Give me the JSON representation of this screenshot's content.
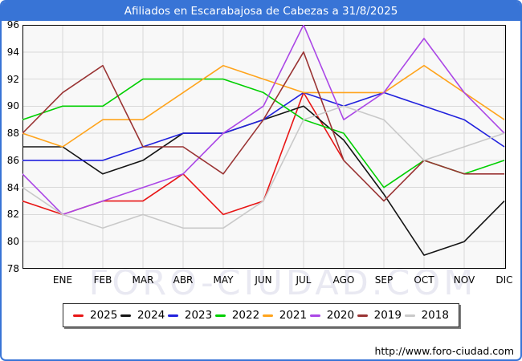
{
  "frame": {
    "title": "Afiliados en Escarabajosa de Cabezas a 31/8/2025",
    "watermark": "FORO-CIUDAD.COM",
    "url": "http://www.foro-ciudad.com"
  },
  "colors": {
    "titlebar": "#3874d6",
    "plot_background": "#f8f8f8",
    "gridline": "#d9d9d9",
    "plot_border": "#000000",
    "watermark_text": "#e9e9f2"
  },
  "chart_data": {
    "type": "line",
    "title": "Afiliados en Escarabajosa de Cabezas a 31/8/2025",
    "xlabel": "",
    "ylabel": "",
    "ylim": [
      78,
      96
    ],
    "y_ticks": [
      96,
      94,
      92,
      90,
      88,
      86,
      84,
      82,
      80,
      78
    ],
    "x_labels": [
      "",
      "ENE",
      "FEB",
      "MAR",
      "ABR",
      "MAY",
      "JUN",
      "JUL",
      "AGO",
      "SEP",
      "OCT",
      "NOV",
      "DIC"
    ],
    "grid": true,
    "legend_position": "bottom",
    "note_first_point": "first value of each series is drawn at the left plot edge before ENE",
    "series": [
      {
        "name": "2025",
        "color": "#e81515",
        "values": [
          83,
          82,
          83,
          83,
          85,
          82,
          83,
          91,
          86
        ]
      },
      {
        "name": "2024",
        "color": "#141414",
        "values": [
          87,
          87,
          85,
          86,
          88,
          88,
          89,
          90,
          87.5,
          83.5,
          79,
          80,
          83
        ]
      },
      {
        "name": "2023",
        "color": "#2121dd",
        "values": [
          86,
          86,
          86,
          87,
          88,
          88,
          89,
          91,
          90,
          91,
          90,
          89,
          87
        ]
      },
      {
        "name": "2022",
        "color": "#00cf00",
        "values": [
          89,
          90,
          90,
          92,
          92,
          92,
          91,
          89,
          88,
          84,
          86,
          85,
          86
        ]
      },
      {
        "name": "2021",
        "color": "#ffa41c",
        "values": [
          88,
          87,
          89,
          89,
          91,
          93,
          92,
          91,
          91,
          91,
          93,
          91,
          89
        ]
      },
      {
        "name": "2020",
        "color": "#ab47e6",
        "values": [
          85,
          82,
          83,
          84,
          85,
          88,
          90,
          96,
          89,
          91,
          95,
          91,
          88
        ]
      },
      {
        "name": "2019",
        "color": "#9a3434",
        "values": [
          88,
          91,
          93,
          87,
          87,
          85,
          89,
          94,
          86,
          83,
          86,
          85,
          85
        ]
      },
      {
        "name": "2018",
        "color": "#c9c9c9",
        "values": [
          84,
          82,
          81,
          82,
          81,
          81,
          83,
          89,
          90,
          89,
          86,
          87,
          88
        ]
      }
    ]
  }
}
